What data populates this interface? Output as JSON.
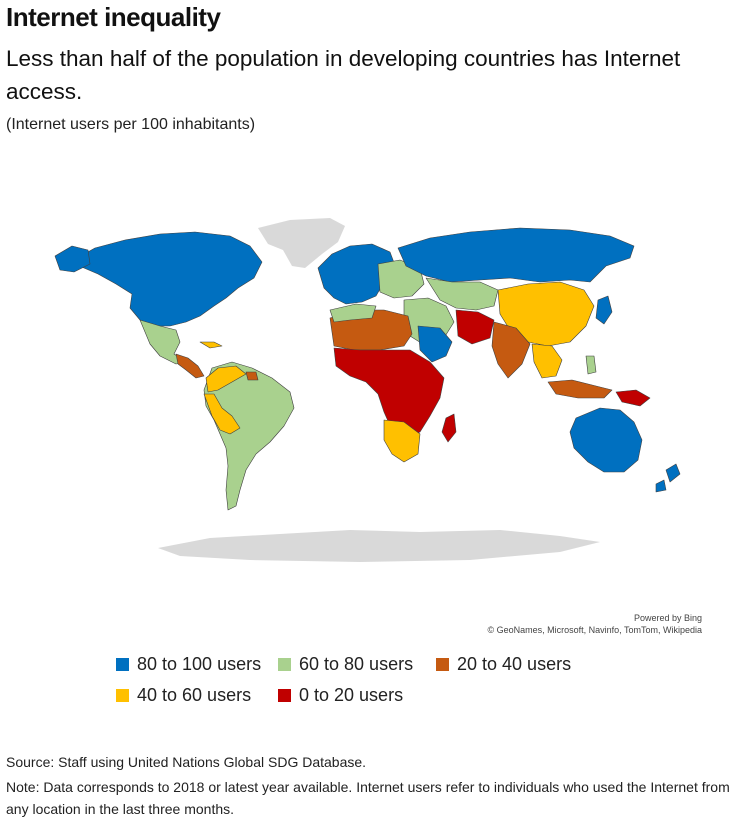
{
  "title": "Internet inequality",
  "subtitle": "Less than half of the population in developing countries has Internet access.",
  "unit_note": "(Internet users per 100 inhabitants)",
  "map_credit": {
    "powered_by": "Powered by Bing",
    "attribution": "© GeoNames, Microsoft, Navinfo, TomTom, Wikipedia"
  },
  "legend": [
    {
      "label": "80 to 100 users",
      "color": "#0070c0"
    },
    {
      "label": "60 to 80 users",
      "color": "#a9d18e"
    },
    {
      "label": "20 to 40 users",
      "color": "#c55a11"
    },
    {
      "label": "40 to 60 users",
      "color": "#ffc000"
    },
    {
      "label": "0 to 20 users",
      "color": "#c00000"
    }
  ],
  "colors": {
    "no_data": "#d9d9d9",
    "border": "#404040"
  },
  "source": "Source: Staff using United Nations Global SDG Database.",
  "note": "Note: Data corresponds to 2018 or latest year available. Internet users refer to individuals who used the Internet from any location in the last three months."
}
